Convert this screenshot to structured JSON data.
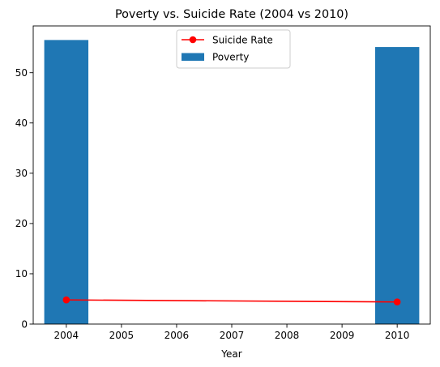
{
  "chart_data": {
    "type": "bar",
    "title": "Poverty vs. Suicide Rate (2004 vs 2010)",
    "xlabel": "Year",
    "ylabel": "",
    "xlim": [
      2003.4,
      2010.6
    ],
    "ylim": [
      0,
      59.3
    ],
    "x_ticks": [
      2004,
      2005,
      2006,
      2007,
      2008,
      2009,
      2010
    ],
    "y_ticks": [
      0,
      10,
      20,
      30,
      40,
      50
    ],
    "grid": false,
    "legend_position": "top-center",
    "bar_series": {
      "name": "Poverty",
      "color": "#1f77b4",
      "bar_width": 0.8,
      "x": [
        2004,
        2010
      ],
      "values": [
        56.5,
        55.1
      ]
    },
    "line_series": {
      "name": "Suicide Rate",
      "color": "#ff0000",
      "marker": "circle",
      "x": [
        2004,
        2010
      ],
      "values": [
        4.8,
        4.4
      ]
    },
    "legend": [
      {
        "label": "Suicide Rate",
        "kind": "line-marker"
      },
      {
        "label": "Poverty",
        "kind": "patch"
      }
    ]
  }
}
